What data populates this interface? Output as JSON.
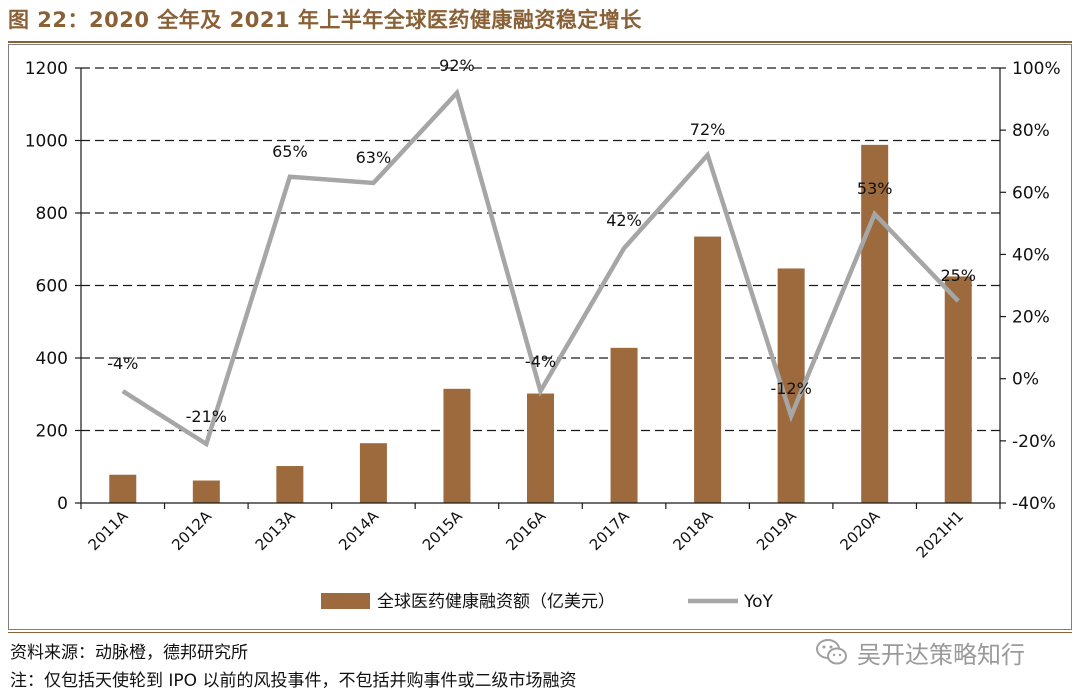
{
  "title": "图 22：2020 全年及 2021 年上半年全球医药健康融资稳定增长",
  "chart_data": {
    "type": "bar",
    "categories": [
      "2011A",
      "2012A",
      "2013A",
      "2014A",
      "2015A",
      "2016A",
      "2017A",
      "2018A",
      "2019A",
      "2020A",
      "2021H1"
    ],
    "series": [
      {
        "name": "全球医药健康融资额（亿美元）",
        "type": "bar",
        "axis": "left",
        "values": [
          78,
          62,
          102,
          165,
          315,
          302,
          428,
          735,
          647,
          988,
          625
        ]
      },
      {
        "name": "YoY",
        "type": "line",
        "axis": "right",
        "values": [
          -4,
          -21,
          65,
          63,
          92,
          -4,
          42,
          72,
          -12,
          53,
          25
        ],
        "labels": [
          "-4%",
          "-21%",
          "65%",
          "63%",
          "92%",
          "-4%",
          "42%",
          "72%",
          "-12%",
          "53%",
          "25%"
        ]
      }
    ],
    "ylim_left": [
      0,
      1200
    ],
    "yticks_left": [
      "0",
      "200",
      "400",
      "600",
      "800",
      "1000",
      "1200"
    ],
    "ylim_right": [
      -40,
      100
    ],
    "yticks_right": [
      "-40%",
      "-20%",
      "0%",
      "20%",
      "40%",
      "60%",
      "80%",
      "100%"
    ],
    "grid": "horizontal dashed",
    "legend_position": "bottom",
    "colors": {
      "bar": "#9c6a3c",
      "line": "#a6a6a6"
    }
  },
  "source": "资料来源：动脉橙，德邦研究所",
  "footnote": "注：仅包括天使轮到 IPO 以前的风投事件，不包括并购事件或二级市场融资",
  "watermark": {
    "icon": "wechat-icon",
    "text": "吴开达策略知行"
  }
}
